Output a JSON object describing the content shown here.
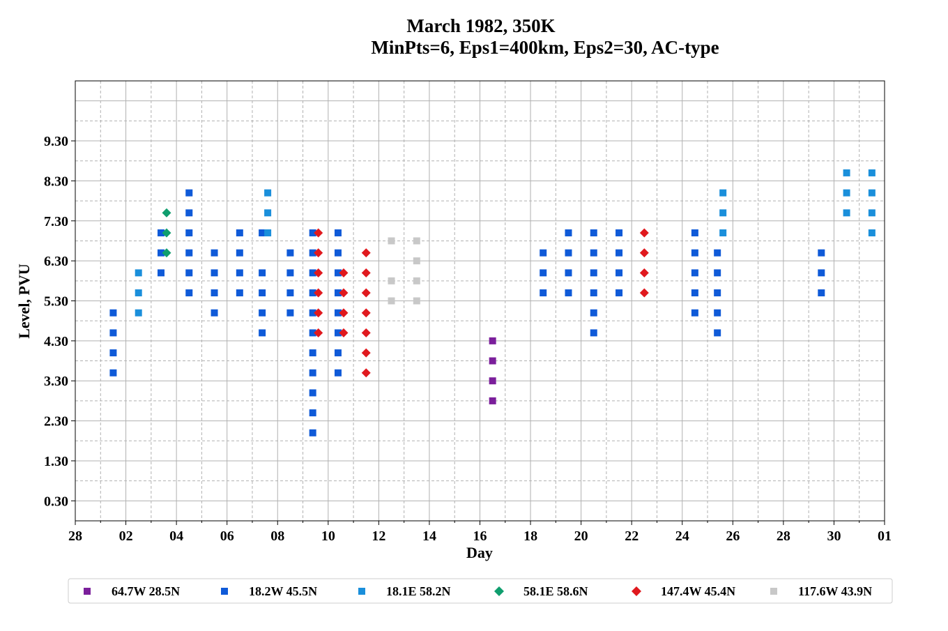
{
  "chart_data": {
    "type": "scatter",
    "title": "March 1982, 350K",
    "subtitle": "MinPts=6, Eps1=400km, Eps2=30, AC-type",
    "xlabel": "Day",
    "ylabel": "Level, PVU",
    "xlim": [
      "1982-02-28",
      "1982-04-01"
    ],
    "ylim": [
      -0.2,
      10.8
    ],
    "x_ticks": [
      "28",
      "02",
      "04",
      "06",
      "08",
      "10",
      "12",
      "14",
      "16",
      "18",
      "20",
      "22",
      "24",
      "26",
      "28",
      "30",
      "01"
    ],
    "y_ticks": [
      "0.30",
      "1.30",
      "2.30",
      "3.30",
      "4.30",
      "5.30",
      "6.30",
      "7.30",
      "8.30",
      "9.30"
    ],
    "grid": true,
    "legend_position": "bottom",
    "series": [
      {
        "name": "64.7W 28.5N",
        "color": "#7b1f9b",
        "marker": "square",
        "points": [
          [
            "1982-03-16",
            2.8
          ],
          [
            "1982-03-16",
            3.3
          ],
          [
            "1982-03-16",
            3.8
          ],
          [
            "1982-03-16",
            4.3
          ]
        ]
      },
      {
        "name": "18.2W 45.5N",
        "color": "#0f5ad8",
        "marker": "square",
        "points": [
          [
            "1982-03-01",
            3.5
          ],
          [
            "1982-03-01",
            4.0
          ],
          [
            "1982-03-01",
            4.5
          ],
          [
            "1982-03-01",
            5.0
          ],
          [
            "1982-03-03",
            6.0
          ],
          [
            "1982-03-03",
            6.5
          ],
          [
            "1982-03-03",
            7.0
          ],
          [
            "1982-03-04",
            5.5
          ],
          [
            "1982-03-04",
            6.0
          ],
          [
            "1982-03-04",
            6.5
          ],
          [
            "1982-03-04",
            7.0
          ],
          [
            "1982-03-04",
            7.5
          ],
          [
            "1982-03-04",
            8.0
          ],
          [
            "1982-03-05",
            5.0
          ],
          [
            "1982-03-05",
            5.5
          ],
          [
            "1982-03-05",
            6.0
          ],
          [
            "1982-03-05",
            6.5
          ],
          [
            "1982-03-06",
            5.5
          ],
          [
            "1982-03-06",
            6.0
          ],
          [
            "1982-03-06",
            6.5
          ],
          [
            "1982-03-06",
            7.0
          ],
          [
            "1982-03-07",
            4.5
          ],
          [
            "1982-03-07",
            5.0
          ],
          [
            "1982-03-07",
            5.5
          ],
          [
            "1982-03-07",
            6.0
          ],
          [
            "1982-03-07",
            7.0
          ],
          [
            "1982-03-08",
            5.0
          ],
          [
            "1982-03-08",
            5.5
          ],
          [
            "1982-03-08",
            6.0
          ],
          [
            "1982-03-08",
            6.5
          ],
          [
            "1982-03-09",
            2.0
          ],
          [
            "1982-03-09",
            2.5
          ],
          [
            "1982-03-09",
            3.0
          ],
          [
            "1982-03-09",
            3.5
          ],
          [
            "1982-03-09",
            4.0
          ],
          [
            "1982-03-09",
            4.5
          ],
          [
            "1982-03-09",
            5.0
          ],
          [
            "1982-03-09",
            5.5
          ],
          [
            "1982-03-09",
            6.0
          ],
          [
            "1982-03-09",
            6.5
          ],
          [
            "1982-03-09",
            7.0
          ],
          [
            "1982-03-10",
            3.5
          ],
          [
            "1982-03-10",
            4.0
          ],
          [
            "1982-03-10",
            4.5
          ],
          [
            "1982-03-10",
            5.0
          ],
          [
            "1982-03-10",
            5.5
          ],
          [
            "1982-03-10",
            6.0
          ],
          [
            "1982-03-10",
            6.5
          ],
          [
            "1982-03-10",
            7.0
          ],
          [
            "1982-03-18",
            5.5
          ],
          [
            "1982-03-18",
            6.0
          ],
          [
            "1982-03-18",
            6.5
          ],
          [
            "1982-03-19",
            5.5
          ],
          [
            "1982-03-19",
            6.0
          ],
          [
            "1982-03-19",
            6.5
          ],
          [
            "1982-03-19",
            7.0
          ],
          [
            "1982-03-20",
            4.5
          ],
          [
            "1982-03-20",
            5.0
          ],
          [
            "1982-03-20",
            5.5
          ],
          [
            "1982-03-20",
            6.0
          ],
          [
            "1982-03-20",
            6.5
          ],
          [
            "1982-03-20",
            7.0
          ],
          [
            "1982-03-21",
            5.5
          ],
          [
            "1982-03-21",
            6.0
          ],
          [
            "1982-03-21",
            6.5
          ],
          [
            "1982-03-21",
            7.0
          ],
          [
            "1982-03-24",
            5.0
          ],
          [
            "1982-03-24",
            5.5
          ],
          [
            "1982-03-24",
            6.0
          ],
          [
            "1982-03-24",
            6.5
          ],
          [
            "1982-03-24",
            7.0
          ],
          [
            "1982-03-25",
            4.5
          ],
          [
            "1982-03-25",
            5.0
          ],
          [
            "1982-03-25",
            5.5
          ],
          [
            "1982-03-25",
            6.0
          ],
          [
            "1982-03-25",
            6.5
          ],
          [
            "1982-03-29",
            5.5
          ],
          [
            "1982-03-29",
            6.0
          ],
          [
            "1982-03-29",
            6.5
          ]
        ]
      },
      {
        "name": "18.1E 58.2N",
        "color": "#1a8fdb",
        "marker": "square",
        "points": [
          [
            "1982-03-02",
            5.0
          ],
          [
            "1982-03-02",
            5.5
          ],
          [
            "1982-03-02",
            6.0
          ],
          [
            "1982-03-07",
            7.0
          ],
          [
            "1982-03-07",
            7.5
          ],
          [
            "1982-03-07",
            8.0
          ],
          [
            "1982-03-25",
            7.0
          ],
          [
            "1982-03-25",
            7.5
          ],
          [
            "1982-03-25",
            8.0
          ],
          [
            "1982-03-30",
            7.5
          ],
          [
            "1982-03-30",
            8.0
          ],
          [
            "1982-03-30",
            8.5
          ],
          [
            "1982-03-31",
            7.0
          ],
          [
            "1982-03-31",
            7.5
          ],
          [
            "1982-03-31",
            8.0
          ],
          [
            "1982-03-31",
            8.5
          ]
        ]
      },
      {
        "name": "58.1E 58.6N",
        "color": "#0f9e6e",
        "marker": "diamond",
        "points": [
          [
            "1982-03-03",
            6.5
          ],
          [
            "1982-03-03",
            7.0
          ],
          [
            "1982-03-03",
            7.5
          ]
        ]
      },
      {
        "name": "147.4W 45.4N",
        "color": "#e0191e",
        "marker": "diamond",
        "points": [
          [
            "1982-03-09",
            4.5
          ],
          [
            "1982-03-09",
            5.0
          ],
          [
            "1982-03-09",
            5.5
          ],
          [
            "1982-03-09",
            6.0
          ],
          [
            "1982-03-09",
            6.5
          ],
          [
            "1982-03-09",
            7.0
          ],
          [
            "1982-03-10",
            4.5
          ],
          [
            "1982-03-10",
            5.0
          ],
          [
            "1982-03-10",
            5.5
          ],
          [
            "1982-03-10",
            6.0
          ],
          [
            "1982-03-11",
            3.5
          ],
          [
            "1982-03-11",
            4.0
          ],
          [
            "1982-03-11",
            4.5
          ],
          [
            "1982-03-11",
            5.0
          ],
          [
            "1982-03-11",
            5.5
          ],
          [
            "1982-03-11",
            6.0
          ],
          [
            "1982-03-11",
            6.5
          ],
          [
            "1982-03-22",
            5.5
          ],
          [
            "1982-03-22",
            6.0
          ],
          [
            "1982-03-22",
            6.5
          ],
          [
            "1982-03-22",
            7.0
          ]
        ]
      },
      {
        "name": "117.6W 43.9N",
        "color": "#c8c8c8",
        "marker": "square",
        "points": [
          [
            "1982-03-12",
            5.3
          ],
          [
            "1982-03-12",
            5.8
          ],
          [
            "1982-03-12",
            6.8
          ],
          [
            "1982-03-13",
            5.3
          ],
          [
            "1982-03-13",
            5.8
          ],
          [
            "1982-03-13",
            6.3
          ],
          [
            "1982-03-13",
            6.8
          ]
        ]
      }
    ]
  }
}
